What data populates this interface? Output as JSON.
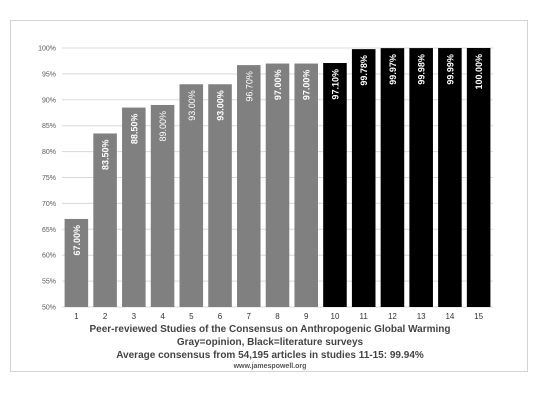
{
  "chart_data": {
    "type": "bar",
    "categories": [
      "1",
      "2",
      "3",
      "4",
      "5",
      "6",
      "7",
      "8",
      "9",
      "10",
      "11",
      "12",
      "13",
      "14",
      "15"
    ],
    "values": [
      67.0,
      83.5,
      88.5,
      89.0,
      93.0,
      93.0,
      96.7,
      97.0,
      97.0,
      97.1,
      99.78,
      99.97,
      99.98,
      99.99,
      100.0
    ],
    "data_labels": [
      "67.00%",
      "83.50%",
      "88.50%",
      "89.00%",
      "93.00%",
      "93.00%",
      "96.70%",
      "97.00%",
      "97.00%",
      "97.10%",
      "99.78%",
      "99.97%",
      "99.98%",
      "99.99%",
      "100.00%"
    ],
    "label_bold": [
      true,
      true,
      true,
      false,
      false,
      true,
      false,
      true,
      true,
      true,
      true,
      true,
      true,
      true,
      true
    ],
    "bar_groups": [
      "opinion",
      "opinion",
      "opinion",
      "opinion",
      "opinion",
      "opinion",
      "opinion",
      "opinion",
      "opinion",
      "survey",
      "survey",
      "survey",
      "survey",
      "survey",
      "survey"
    ],
    "colors": {
      "opinion": "#808080",
      "survey": "#000000",
      "grid": "#d9d9d9",
      "tick_text": "#595959"
    },
    "ylim": [
      50,
      100
    ],
    "yticks": [
      50,
      55,
      60,
      65,
      70,
      75,
      80,
      85,
      90,
      95,
      100
    ],
    "ytick_labels": [
      "50%",
      "55%",
      "60%",
      "65%",
      "70%",
      "75%",
      "80%",
      "85%",
      "90%",
      "95%",
      "100%"
    ],
    "grid": true,
    "legend": "none"
  },
  "caption": {
    "line1": "Peer-reviewed Studies of the Consensus on Anthropogenic Global Warming",
    "line2": "Gray=opinion, Black=literature surveys",
    "line3": "Average consensus from 54,195 articles in studies 11-15: 99.94%",
    "line4": "www.jamespowell.org"
  }
}
